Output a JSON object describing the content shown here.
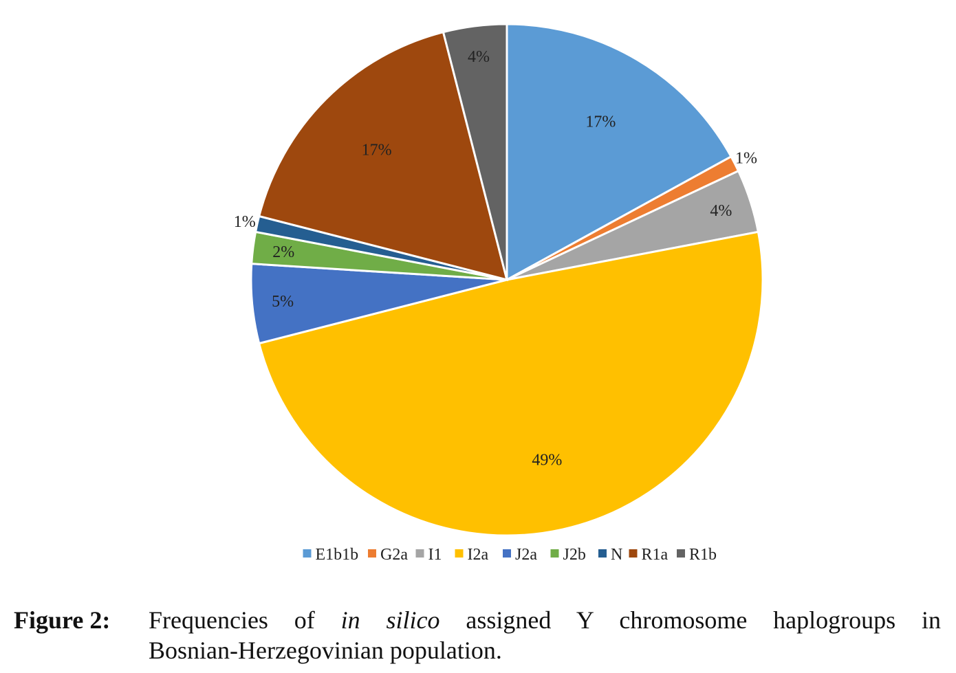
{
  "chart_data": {
    "type": "pie",
    "categories": [
      "E1b1b",
      "G2a",
      "I1",
      "I2a",
      "J2a",
      "J2b",
      "N",
      "R1a",
      "R1b"
    ],
    "values": [
      17,
      1,
      4,
      49,
      5,
      2,
      1,
      17,
      4
    ],
    "data_labels": [
      "17%",
      "1%",
      "4%",
      "49%",
      "5%",
      "2%",
      "1%",
      "17%",
      "4%"
    ],
    "colors": [
      "#5b9bd5",
      "#ed7d31",
      "#a5a5a5",
      "#ffc000",
      "#4472c4",
      "#70ad47",
      "#255e91",
      "#9e480e",
      "#636363"
    ],
    "start": "12 o'clock",
    "direction": "clockwise",
    "legend_position": "bottom"
  },
  "caption": {
    "label": "Figure 2:",
    "text_before": "Frequencies of ",
    "text_italic": "in silico",
    "text_after_line1": " assigned Y chromosome haplogroups in",
    "text_line2": "Bosnian-Herzegovinian population."
  }
}
